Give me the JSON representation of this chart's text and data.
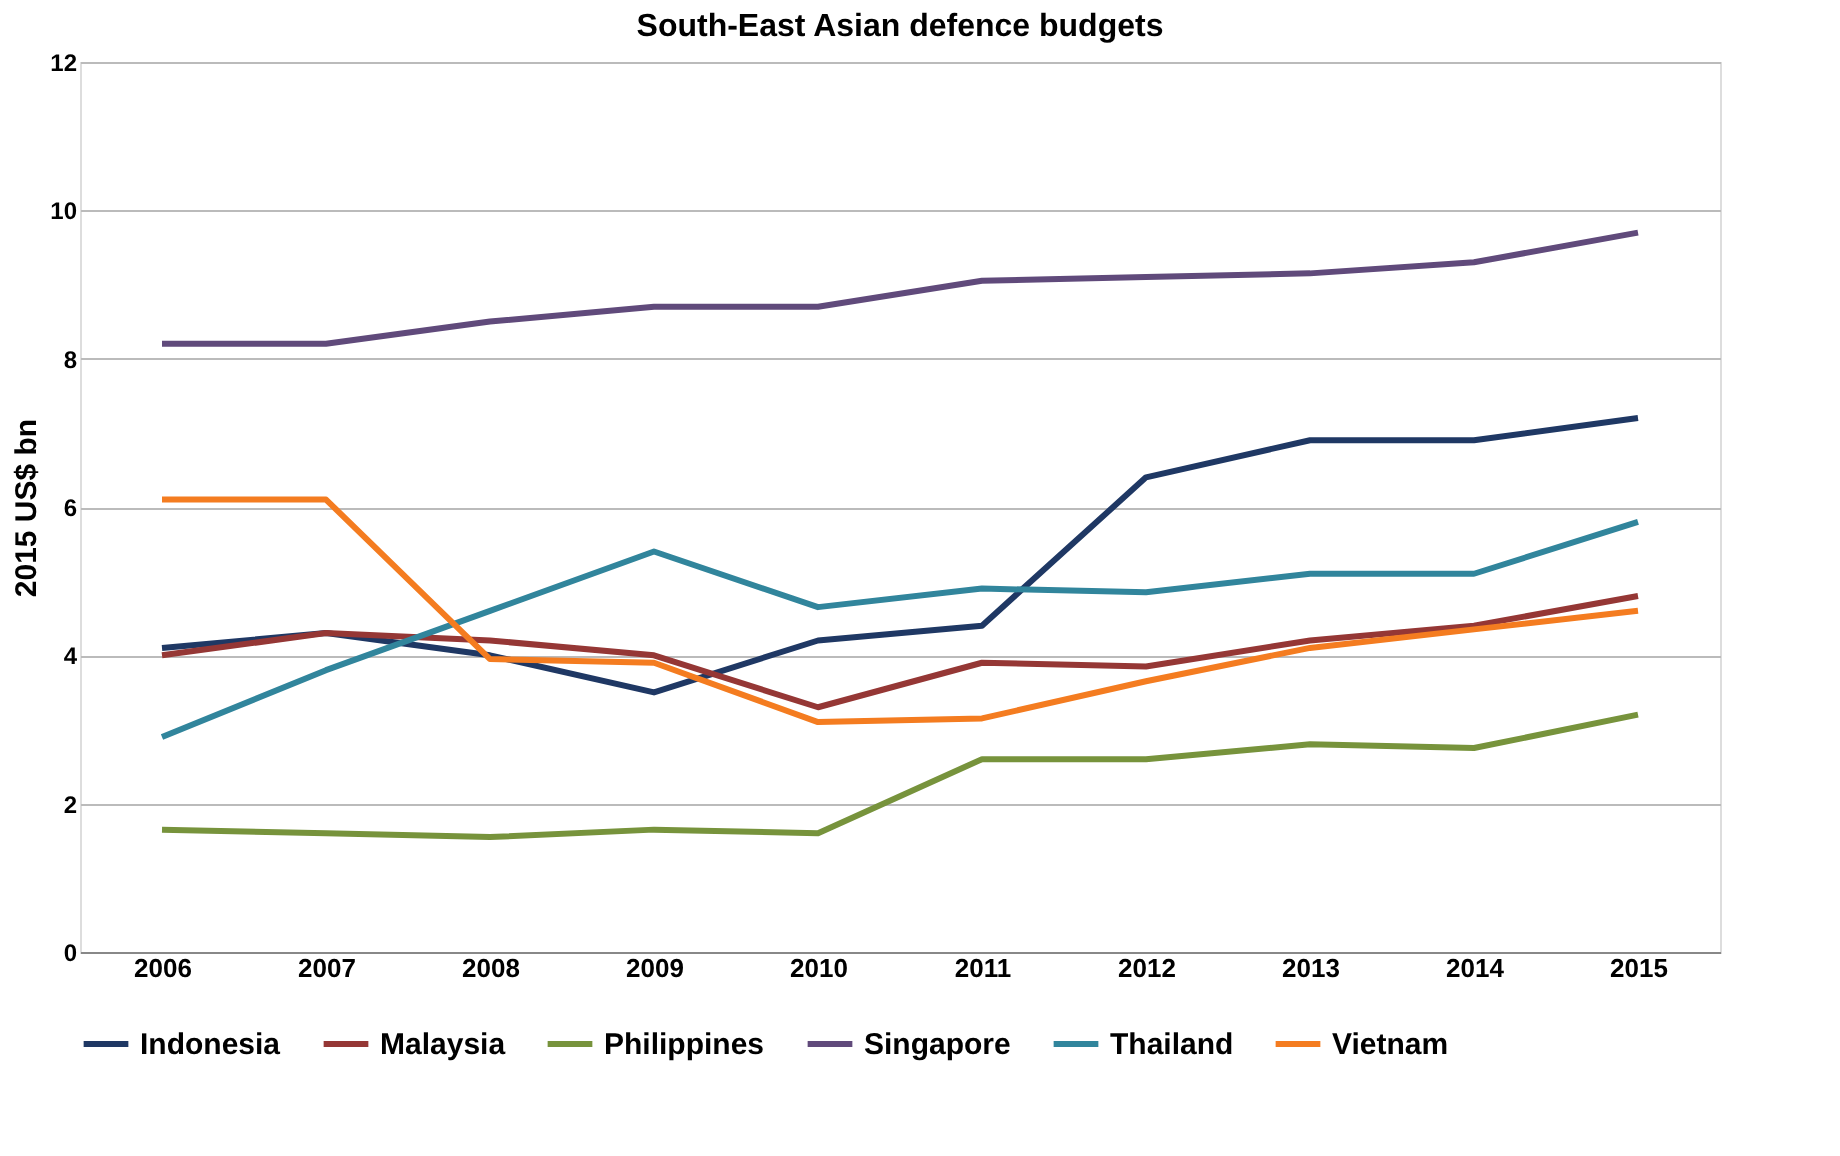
{
  "chart_data": {
    "type": "line",
    "title": "South-East  Asian defence budgets",
    "ylabel": "2015 US$ bn",
    "categories": [
      "2006",
      "2007",
      "2008",
      "2009",
      "2010",
      "2011",
      "2012",
      "2013",
      "2014",
      "2015"
    ],
    "series": [
      {
        "name": "Indonesia",
        "color": "#1f3864",
        "values": [
          4.1,
          4.3,
          4.0,
          3.5,
          4.2,
          4.4,
          6.4,
          6.9,
          6.9,
          7.2
        ]
      },
      {
        "name": "Malaysia",
        "color": "#953735",
        "values": [
          4.0,
          4.3,
          4.2,
          4.0,
          3.3,
          3.9,
          3.85,
          4.2,
          4.4,
          4.8
        ]
      },
      {
        "name": "Philippines",
        "color": "#77933c",
        "values": [
          1.65,
          1.6,
          1.55,
          1.65,
          1.6,
          2.6,
          2.6,
          2.8,
          2.75,
          3.2
        ]
      },
      {
        "name": "Singapore",
        "color": "#604a7b",
        "values": [
          8.2,
          8.2,
          8.5,
          8.7,
          8.7,
          9.05,
          9.1,
          9.15,
          9.3,
          9.7
        ]
      },
      {
        "name": "Thailand",
        "color": "#31859c",
        "values": [
          2.9,
          3.8,
          4.6,
          5.4,
          4.65,
          4.9,
          4.85,
          5.1,
          5.1,
          5.8
        ]
      },
      {
        "name": "Vietnam",
        "color": "#f47c20",
        "values": [
          6.1,
          6.1,
          3.95,
          3.9,
          3.1,
          3.15,
          3.65,
          4.1,
          4.35,
          4.6
        ]
      }
    ],
    "ylim": [
      0,
      12
    ],
    "yticks": [
      0,
      2,
      4,
      6,
      8,
      10,
      12
    ],
    "grid": "y",
    "legend": "bottom",
    "marker": "none",
    "line_style": "solid"
  }
}
